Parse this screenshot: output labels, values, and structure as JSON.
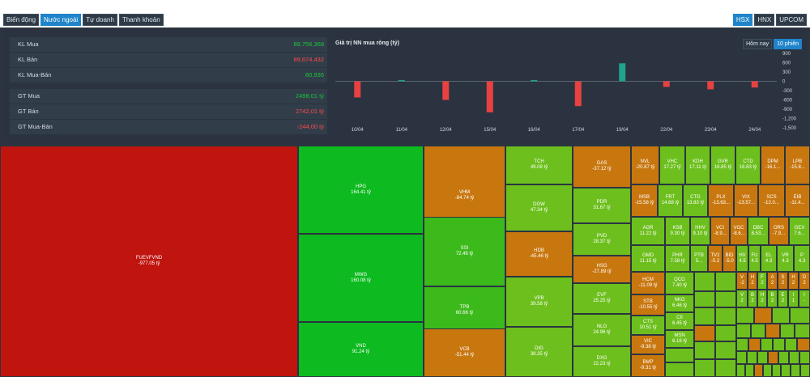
{
  "tabs": [
    {
      "label": "Biến động",
      "active": false
    },
    {
      "label": "Nước ngoài",
      "active": true
    },
    {
      "label": "Tự doanh",
      "active": false
    },
    {
      "label": "Thanh khoản",
      "active": false
    }
  ],
  "exchanges": [
    {
      "label": "HSX",
      "active": true
    },
    {
      "label": "HNX",
      "active": false
    },
    {
      "label": "UPCOM",
      "active": false
    }
  ],
  "stats": {
    "kl_mua_label": "KL Mua",
    "kl_mua_value": "89,756,368",
    "kl_ban_label": "KL Bán",
    "kl_ban_value": "89,674,432",
    "kl_muaban_label": "KL Mua-Bán",
    "kl_muaban_value": "80,936",
    "gt_mua_label": "GT Mua",
    "gt_mua_value": "2498.01 tỷ",
    "gt_ban_label": "GT Bán",
    "gt_ban_value": "2742.01 tỷ",
    "gt_muaban_label": "GT Mua-Bán",
    "gt_muaban_value": "-244.00 tỷ"
  },
  "chart_title": "Giá trị NN mua ròng (tỷ)",
  "range_buttons": [
    {
      "label": "Hôm nay",
      "active": false
    },
    {
      "label": "10 phiên",
      "active": true
    }
  ],
  "chart_data": {
    "type": "bar",
    "title": "Giá trị NN mua ròng (tỷ)",
    "categories": [
      "10/04",
      "11/04",
      "12/04",
      "15/04",
      "16/04",
      "17/04",
      "19/04",
      "22/04",
      "23/04",
      "24/04"
    ],
    "values": [
      -520,
      40,
      -600,
      -1000,
      40,
      -800,
      580,
      -180,
      -260,
      -200
    ],
    "ylim": [
      -1500,
      900
    ],
    "yticks": [
      "900",
      "600",
      "300",
      "0",
      "-300",
      "-600",
      "-900",
      "-1,200",
      "-1,500"
    ],
    "colors": {
      "positive": "#1fa38a",
      "negative": "#e84141"
    }
  },
  "treemap": [
    {
      "sym": "FUEVFVND",
      "val": "-977.05 tỷ"
    },
    {
      "sym": "HPG",
      "val": "164.41 tỷ"
    },
    {
      "sym": "MWG",
      "val": "160.08 tỷ"
    },
    {
      "sym": "VND",
      "val": "91.24 tỷ"
    },
    {
      "sym": "VHM",
      "val": "-84.74 tỷ"
    },
    {
      "sym": "SSI",
      "val": "72.46 tỷ"
    },
    {
      "sym": "TPB",
      "val": "60.66 tỷ"
    },
    {
      "sym": "VCB",
      "val": "-51.44 tỷ"
    },
    {
      "sym": "TCH",
      "val": "49.08 tỷ"
    },
    {
      "sym": "DGW",
      "val": "47.34 tỷ"
    },
    {
      "sym": "HDB",
      "val": "-45.46 tỷ"
    },
    {
      "sym": "VPB",
      "val": "39.58 tỷ"
    },
    {
      "sym": "DIG",
      "val": "38.35 tỷ"
    },
    {
      "sym": "GAS",
      "val": "-37.12 tỷ"
    },
    {
      "sym": "PDR",
      "val": "31.67 tỷ"
    },
    {
      "sym": "PVD",
      "val": "28.37 tỷ"
    },
    {
      "sym": "HSG",
      "val": "-27.89 tỷ"
    },
    {
      "sym": "EVF",
      "val": "25.25 tỷ"
    },
    {
      "sym": "NLG",
      "val": "24.96 tỷ"
    },
    {
      "sym": "DXG",
      "val": "22.23 tỷ"
    },
    {
      "sym": "NVL",
      "val": "-20.87 tỷ"
    },
    {
      "sym": "VHC",
      "val": "17.27 tỷ"
    },
    {
      "sym": "KDH",
      "val": "17.11 tỷ"
    },
    {
      "sym": "GVR",
      "val": "16.85 tỷ"
    },
    {
      "sym": "CTD",
      "val": "16.83 tỷ"
    },
    {
      "sym": "DPM",
      "val": "-16.1..."
    },
    {
      "sym": "LPB",
      "val": "-15.8..."
    },
    {
      "sym": "MSB",
      "val": "-15.58 tỷ"
    },
    {
      "sym": "FRT",
      "val": "14.68 tỷ"
    },
    {
      "sym": "CTG",
      "val": "13.83 tỷ"
    },
    {
      "sym": "PLX",
      "val": "-13.63..."
    },
    {
      "sym": "VIX",
      "val": "-13.57..."
    },
    {
      "sym": "SCS",
      "val": "-12.0..."
    },
    {
      "sym": "EIB",
      "val": "-11.4..."
    },
    {
      "sym": "AGR",
      "val": "11.22 tỷ"
    },
    {
      "sym": "KSB",
      "val": "9.30 tỷ"
    },
    {
      "sym": "HHV",
      "val": "9.10 tỷ"
    },
    {
      "sym": "VCI",
      "val": "-8.9..."
    },
    {
      "sym": "VGC",
      "val": "-8.6..."
    },
    {
      "sym": "DBC",
      "val": "8.53..."
    },
    {
      "sym": "ORS",
      "val": "-7.9..."
    },
    {
      "sym": "GEX",
      "val": "7.6..."
    },
    {
      "sym": "GMD",
      "val": "11.15 tỷ"
    },
    {
      "sym": "PHR",
      "val": "7.58 tỷ"
    },
    {
      "sym": "PTB",
      "val": "5..."
    },
    {
      "sym": "TV2",
      "val": "-5.2"
    },
    {
      "sym": "BID",
      "val": "-5.0"
    },
    {
      "sym": "HV",
      "val": "4.5"
    },
    {
      "sym": "FU",
      "val": "4.5"
    },
    {
      "sym": "EL",
      "val": "4.3"
    },
    {
      "sym": "VR",
      "val": "4.3"
    },
    {
      "sym": "P",
      "val": "4.3"
    },
    {
      "sym": "HCM",
      "val": "-11.09 tỷ"
    },
    {
      "sym": "QCG",
      "val": "7.40 tỷ"
    },
    {
      "sym": "STB",
      "val": "-10.55 tỷ"
    },
    {
      "sym": "NKG",
      "val": "6.46 tỷ"
    },
    {
      "sym": "CII",
      "val": "6.45 tỷ"
    },
    {
      "sym": "CTS",
      "val": "10.51 tỷ"
    },
    {
      "sym": "MSN",
      "val": "6.18 tỷ"
    },
    {
      "sym": "VIC",
      "val": "-9.38 tỷ"
    },
    {
      "sym": "BMP",
      "val": "-9.31 tỷ"
    }
  ],
  "small_cells": [
    {
      "sym": "V",
      "val": "-2"
    },
    {
      "sym": "H",
      "val": "2"
    },
    {
      "sym": "F",
      "val": "2"
    },
    {
      "sym": "A",
      "val": "2"
    },
    {
      "sym": "S",
      "val": "2"
    },
    {
      "sym": "H",
      "val": "2"
    },
    {
      "sym": "D",
      "val": "2"
    },
    {
      "sym": "V",
      "val": "2"
    },
    {
      "sym": "B",
      "val": "2"
    },
    {
      "sym": "H",
      "val": "2"
    },
    {
      "sym": "B",
      "val": "2"
    },
    {
      "sym": "E",
      "val": "2"
    },
    {
      "sym": "I",
      "val": "1"
    },
    {
      "sym": "I",
      "val": "-"
    }
  ]
}
